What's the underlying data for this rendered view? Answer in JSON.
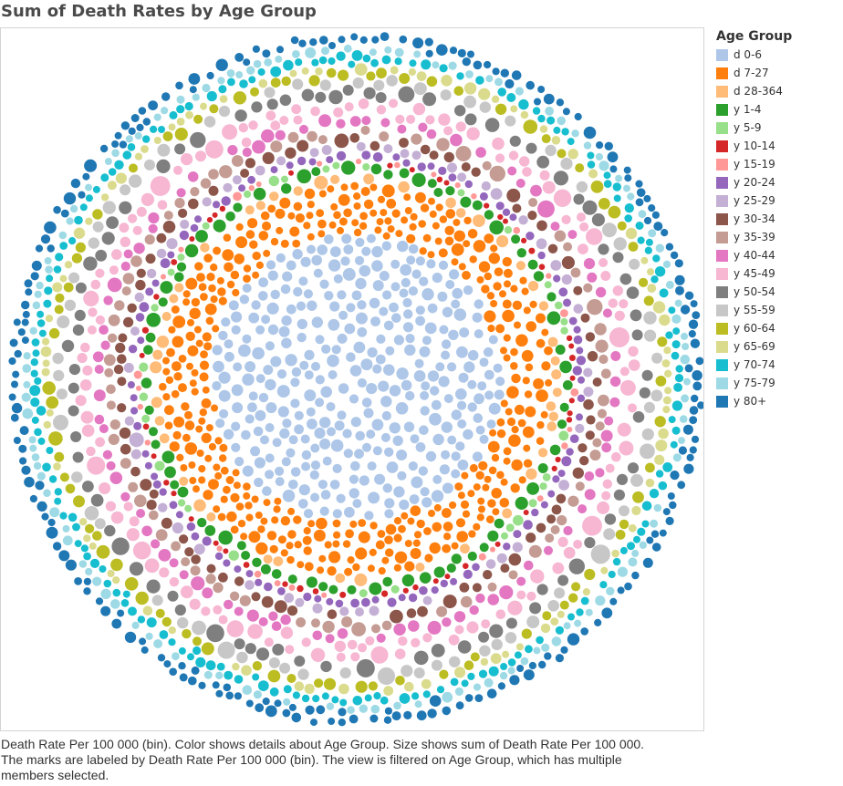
{
  "title": "Sum of Death Rates by Age Group",
  "legend": {
    "title": "Age Group",
    "items": [
      {
        "label": "d 0-6",
        "color": "#aec7e8"
      },
      {
        "label": "d 7-27",
        "color": "#ff7f0e"
      },
      {
        "label": "d 28-364",
        "color": "#ffbb78"
      },
      {
        "label": "y 1-4",
        "color": "#2ca02c"
      },
      {
        "label": "y 5-9",
        "color": "#98df8a"
      },
      {
        "label": "y 10-14",
        "color": "#d62728"
      },
      {
        "label": "y 15-19",
        "color": "#ff9896"
      },
      {
        "label": "y 20-24",
        "color": "#9467bd"
      },
      {
        "label": "y 25-29",
        "color": "#c5b0d5"
      },
      {
        "label": "y 30-34",
        "color": "#8c564b"
      },
      {
        "label": "y 35-39",
        "color": "#c49c94"
      },
      {
        "label": "y 40-44",
        "color": "#e377c2"
      },
      {
        "label": "y 45-49",
        "color": "#f7b6d2"
      },
      {
        "label": "y 50-54",
        "color": "#7f7f7f"
      },
      {
        "label": "y 55-59",
        "color": "#c7c7c7"
      },
      {
        "label": "y 60-64",
        "color": "#bcbd22"
      },
      {
        "label": "y 65-69",
        "color": "#dbdb8d"
      },
      {
        "label": "y 70-74",
        "color": "#17becf"
      },
      {
        "label": "y 75-79",
        "color": "#9edae5"
      },
      {
        "label": "y 80+",
        "color": "#1f77b4"
      }
    ]
  },
  "caption": {
    "line1": "Death Rate Per 100 000 (bin).  Color shows details about Age Group.  Size shows sum of Death Rate Per 100 000.",
    "line2": "The marks are labeled by Death Rate Per 100 000 (bin). The view is filtered on Age Group, which has multiple",
    "line3": "members selected."
  },
  "chart_data": {
    "type": "packed-bubble",
    "color_by": "Age Group",
    "size_by": "Sum of Death Rate Per 100 000",
    "series": [
      {
        "name": "d 0-6"
      },
      {
        "name": "d 7-27"
      },
      {
        "name": "d 28-364"
      },
      {
        "name": "y 1-4"
      },
      {
        "name": "y 5-9"
      },
      {
        "name": "y 10-14"
      },
      {
        "name": "y 15-19"
      },
      {
        "name": "y 20-24"
      },
      {
        "name": "y 25-29"
      },
      {
        "name": "y 30-34"
      },
      {
        "name": "y 35-39"
      },
      {
        "name": "y 40-44"
      },
      {
        "name": "y 45-49"
      },
      {
        "name": "y 50-54"
      },
      {
        "name": "y 55-59"
      },
      {
        "name": "y 60-64"
      },
      {
        "name": "y 65-69"
      },
      {
        "name": "y 70-74"
      },
      {
        "name": "y 75-79"
      },
      {
        "name": "y 80+"
      }
    ],
    "legend_position": "right"
  }
}
